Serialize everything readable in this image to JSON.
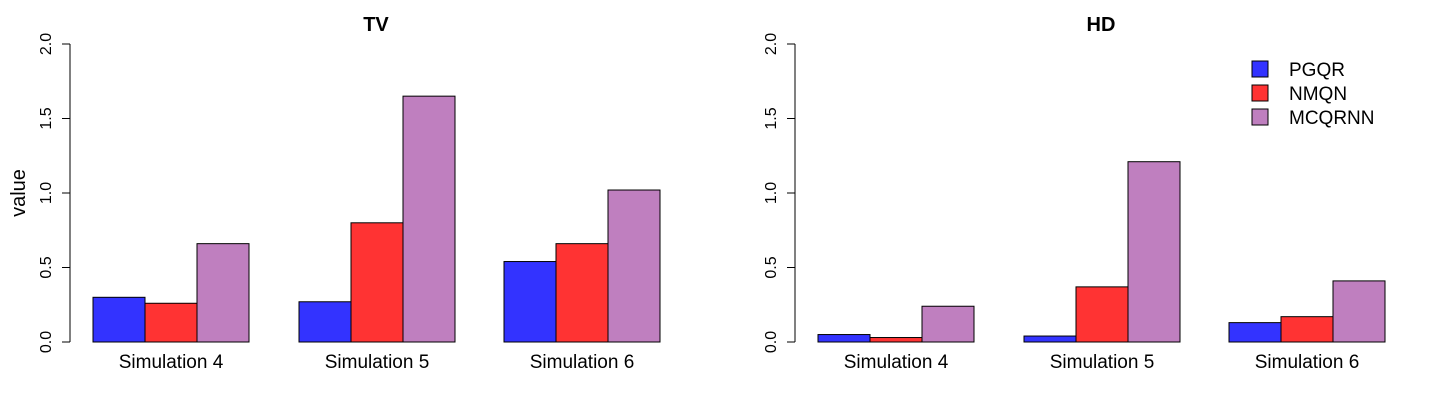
{
  "chart_data": [
    {
      "type": "bar",
      "title": "TV",
      "ylabel": "value",
      "xlabel": "",
      "ylim": [
        0,
        2
      ],
      "yticks": [
        "0.0",
        "0.5",
        "1.0",
        "1.5",
        "2.0"
      ],
      "categories": [
        "Simulation 4",
        "Simulation 5",
        "Simulation 6"
      ],
      "series": [
        {
          "name": "PGQR",
          "color": "#3333ff",
          "values": [
            0.3,
            0.27,
            0.54
          ]
        },
        {
          "name": "NMQN",
          "color": "#ff3333",
          "values": [
            0.26,
            0.8,
            0.66
          ]
        },
        {
          "name": "MCQRNN",
          "color": "#bf7fbf",
          "values": [
            0.66,
            1.65,
            1.02
          ]
        }
      ],
      "legend": false
    },
    {
      "type": "bar",
      "title": "HD",
      "ylabel": "",
      "xlabel": "",
      "ylim": [
        0,
        2
      ],
      "yticks": [
        "0.0",
        "0.5",
        "1.0",
        "1.5",
        "2.0"
      ],
      "categories": [
        "Simulation 4",
        "Simulation 5",
        "Simulation 6"
      ],
      "series": [
        {
          "name": "PGQR",
          "color": "#3333ff",
          "values": [
            0.05,
            0.04,
            0.13
          ]
        },
        {
          "name": "NMQN",
          "color": "#ff3333",
          "values": [
            0.03,
            0.37,
            0.17
          ]
        },
        {
          "name": "MCQRNN",
          "color": "#bf7fbf",
          "values": [
            0.24,
            1.21,
            0.41
          ]
        }
      ],
      "legend": true,
      "legend_position": "top-right"
    }
  ]
}
